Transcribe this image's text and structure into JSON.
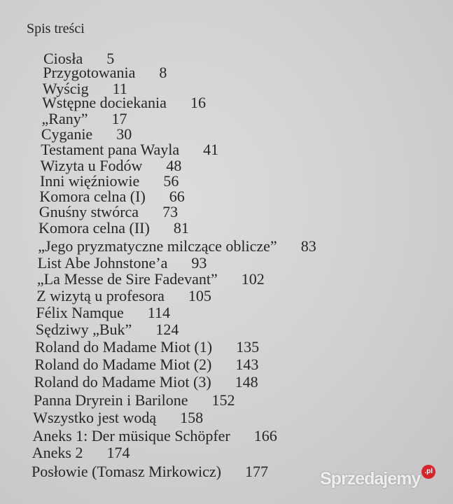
{
  "heading": "Spis treści",
  "entries": [
    {
      "title": "Ciosła",
      "page": "5"
    },
    {
      "title": "Przygotowania",
      "page": "8"
    },
    {
      "title": "Wyścig",
      "page": "11"
    },
    {
      "title": "Wstępne dociekania",
      "page": "16"
    },
    {
      "title": "„Rany”",
      "page": "17"
    },
    {
      "title": "Cyganie",
      "page": "30"
    },
    {
      "title": "Testament pana Wayla",
      "page": "41"
    },
    {
      "title": "Wizyta u Fodów",
      "page": "48"
    },
    {
      "title": "Inni więźniowie",
      "page": "56"
    },
    {
      "title": "Komora celna (I)",
      "page": "66"
    },
    {
      "title": "Gnuśny stwórca",
      "page": "73"
    },
    {
      "title": "Komora celna (II)",
      "page": "81"
    },
    {
      "title": "„Jego pryzmatyczne milczące oblicze”",
      "page": "83"
    },
    {
      "title": "List Abe Johnstone’a",
      "page": "93"
    },
    {
      "title": "„La Messe de Sire Fadevant”",
      "page": "102"
    },
    {
      "title": "Z wizytą u profesora",
      "page": "105"
    },
    {
      "title": "Félix Namque",
      "page": "114"
    },
    {
      "title": "Sędziwy „Buk”",
      "page": "124"
    },
    {
      "title": "Roland do Madame Miot (1)",
      "page": "135"
    },
    {
      "title": "Roland do Madame Miot (2)",
      "page": "143"
    },
    {
      "title": "Roland do Madame Miot (3)",
      "page": "148"
    },
    {
      "title": "Panna Dryrein i Barilone",
      "page": "152"
    },
    {
      "title": "Wszystko jest wodą",
      "page": "158"
    },
    {
      "title": "Aneks 1: Der müsique Schöpfer",
      "page": "166"
    },
    {
      "title": "Aneks 2",
      "page": "174"
    },
    {
      "title": "Posłowie (Tomasz Mirkowicz)",
      "page": "177"
    }
  ],
  "watermark": {
    "text": "Sprzedajemy",
    "badge": ".pl",
    "badge_color": "#d8242a"
  }
}
